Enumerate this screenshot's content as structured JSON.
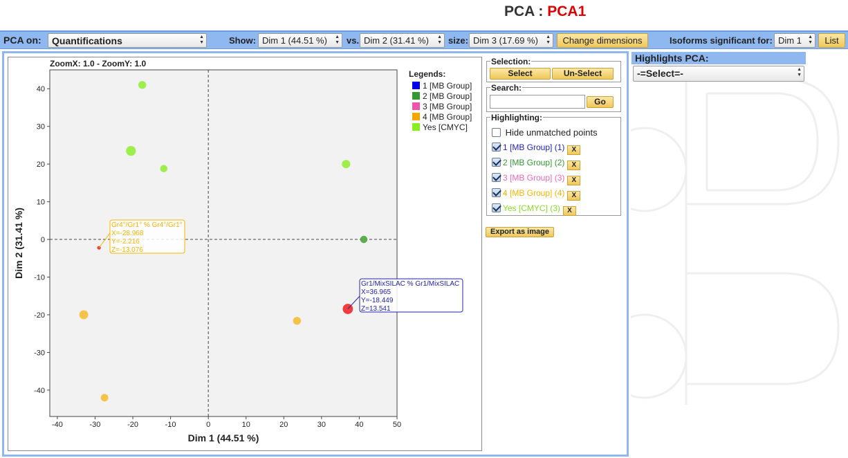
{
  "title": {
    "prefix": "PCA : ",
    "name": "PCA1"
  },
  "toolbar": {
    "pca_on_label": "PCA on:",
    "pca_on_value": "Quantifications",
    "show_label": "Show:",
    "dim_x_value": "Dim 1 (44.51 %)",
    "vs_label": "vs.",
    "dim_y_value": "Dim 2 (31.41 %)",
    "size_label": "size:",
    "dim_size_value": "Dim 3 (17.69 %)",
    "change_dims_button": "Change dimensions",
    "isoforms_label": "Isoforms significant for:",
    "isoforms_value": "Dim 1",
    "list_button": "List"
  },
  "plot": {
    "zoom_label": "ZoomX: 1.0 - ZoomY: 1.0",
    "legend_title": "Legends:",
    "legends": [
      {
        "label": "1 [MB Group]",
        "color": "#0000ee"
      },
      {
        "label": "2 [MB Group]",
        "color": "#339933"
      },
      {
        "label": "3 [MB Group]",
        "color": "#ee55aa"
      },
      {
        "label": "4 [MB Group]",
        "color": "#f5a500"
      },
      {
        "label": "Yes [CMYC]",
        "color": "#88ee22"
      }
    ],
    "tooltips": [
      {
        "lines": [
          "Gr4°/Gr1° % Gr4°/Gr1°",
          "X=-28.968",
          "Y=-2.216",
          "Z=-13.076"
        ],
        "color": "#f5b400"
      },
      {
        "lines": [
          "Gr1/MixSILAC % Gr1/MixSILAC",
          "X=36.965",
          "Y=-18.449",
          "Z=13.541"
        ],
        "color": "#2222aa"
      }
    ]
  },
  "chart_data": {
    "type": "scatter",
    "xlabel": "Dim 1 (44.51 %)",
    "ylabel": "Dim 2 (31.41 %)",
    "xlim": [
      -42,
      50
    ],
    "ylim": [
      -47,
      45
    ],
    "xticks": [
      -40,
      -30,
      -20,
      -10,
      0,
      10,
      20,
      30,
      40,
      50
    ],
    "yticks": [
      40,
      30,
      20,
      10,
      0,
      -10,
      -20,
      -30,
      -40
    ],
    "grid": false,
    "legend_position": "right",
    "points": [
      {
        "x": -17.5,
        "y": 41.0,
        "z": 4.0,
        "color": "#99ee44"
      },
      {
        "x": -20.5,
        "y": 23.5,
        "z": 12.0,
        "color": "#99ee44"
      },
      {
        "x": -11.8,
        "y": 18.8,
        "z": 1.5,
        "color": "#99ee44"
      },
      {
        "x": 36.5,
        "y": 20.0,
        "z": 6.0,
        "color": "#99ee44"
      },
      {
        "x": 41.2,
        "y": 0.0,
        "z": 1.5,
        "color": "#55aa44"
      },
      {
        "x": -28.968,
        "y": -2.216,
        "z": -13.076,
        "color": "#ee3333"
      },
      {
        "x": 36.965,
        "y": -18.449,
        "z": 13.541,
        "color": "#ee3333"
      },
      {
        "x": -33.0,
        "y": -20.0,
        "z": 8.0,
        "color": "#f5c040"
      },
      {
        "x": 23.5,
        "y": -21.6,
        "z": 4.0,
        "color": "#f5c040"
      },
      {
        "x": -27.5,
        "y": -42.0,
        "z": 2.5,
        "color": "#f5c040"
      }
    ]
  },
  "selection": {
    "label": "Selection:",
    "select_button": "Select",
    "unselect_button": "Un-Select"
  },
  "search": {
    "label": "Search:",
    "value": "",
    "go_button": "Go"
  },
  "highlighting": {
    "label": "Highlighting:",
    "hide_unmatched": "Hide unmatched points",
    "items": [
      {
        "label": "1 [MB Group] (1)",
        "color": "#2222bb"
      },
      {
        "label": "2 [MB Group] (2)",
        "color": "#339933"
      },
      {
        "label": "3 [MB Group] (3)",
        "color": "#ee66bb"
      },
      {
        "label": "4 [MB Group] (4)",
        "color": "#f5b400"
      },
      {
        "label": "Yes [CMYC] (3)",
        "color": "#88dd22"
      }
    ],
    "remove_label": "X"
  },
  "export_button": "Export as image",
  "highlights_panel": {
    "title": "Highlights PCA:",
    "select_value": "-=Select=-"
  }
}
